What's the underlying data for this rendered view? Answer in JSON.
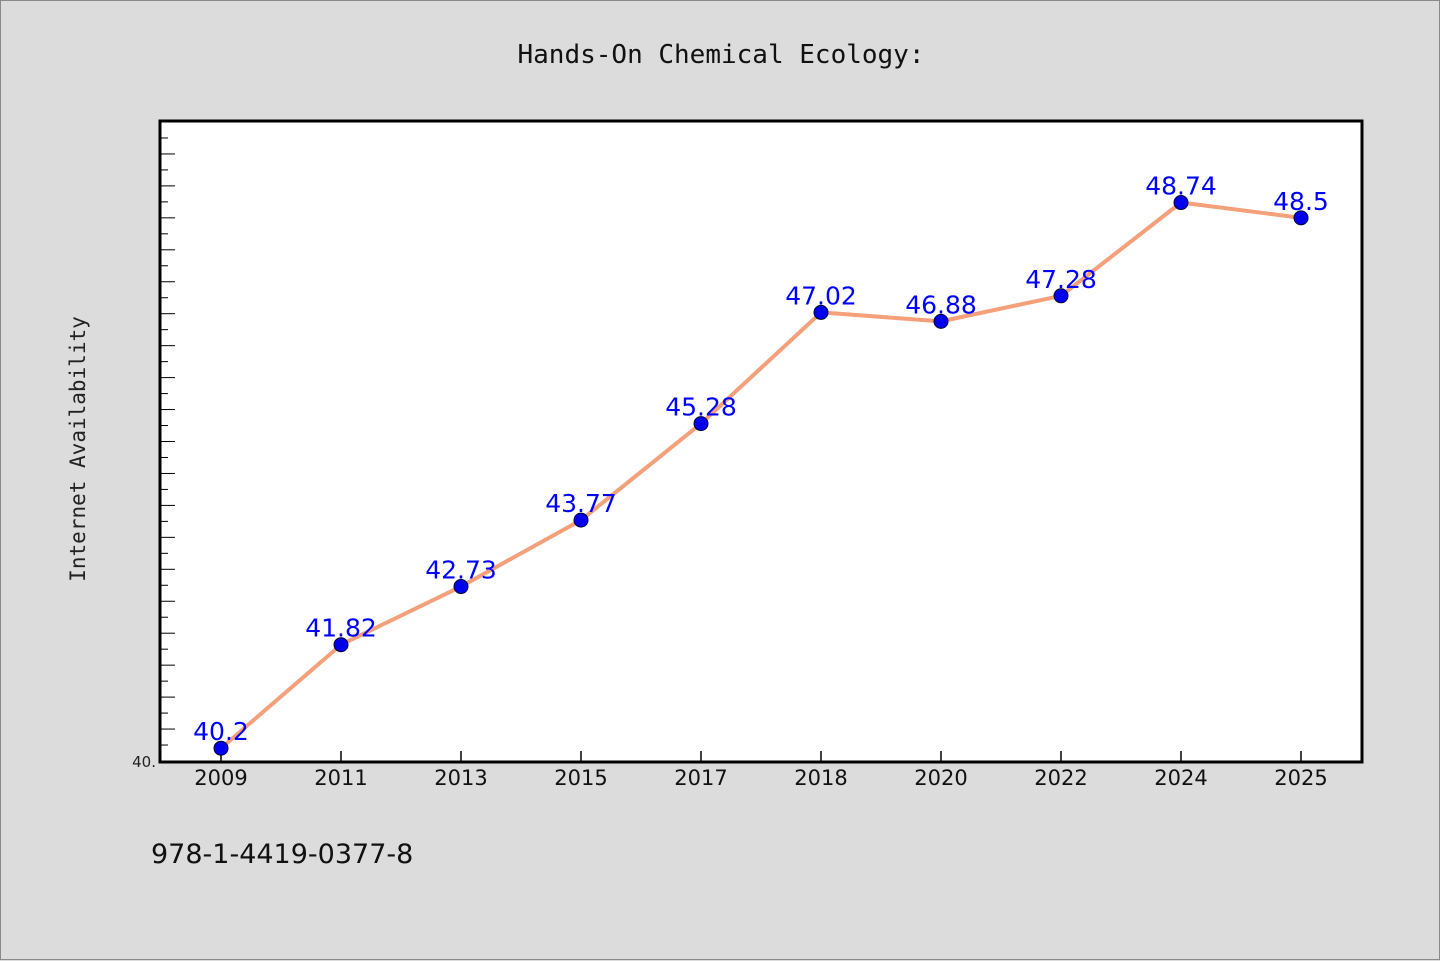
{
  "chart_data": {
    "type": "line",
    "title": "Hands-On Chemical Ecology:",
    "ylabel": "Internet Availability",
    "xlabel": "",
    "categories": [
      "2009",
      "2011",
      "2013",
      "2015",
      "2017",
      "2018",
      "2020",
      "2022",
      "2024",
      "2025"
    ],
    "values": [
      40.2,
      41.82,
      42.73,
      43.77,
      45.28,
      47.02,
      46.88,
      47.28,
      48.74,
      48.5
    ],
    "data_labels": [
      "40.2",
      "41.82",
      "42.73",
      "43.77",
      "45.28",
      "47.02",
      "46.88",
      "47.28",
      "48.74",
      "48.5"
    ],
    "ylim": [
      40.0,
      50.0
    ],
    "ytick_labels": [
      "40."
    ],
    "grid": false,
    "legend": "none",
    "line_color": "#f4a07a",
    "marker_color": "#0000ee",
    "label_color": "#0000ff"
  },
  "footer": {
    "isbn": "978-1-4419-0377-8"
  }
}
